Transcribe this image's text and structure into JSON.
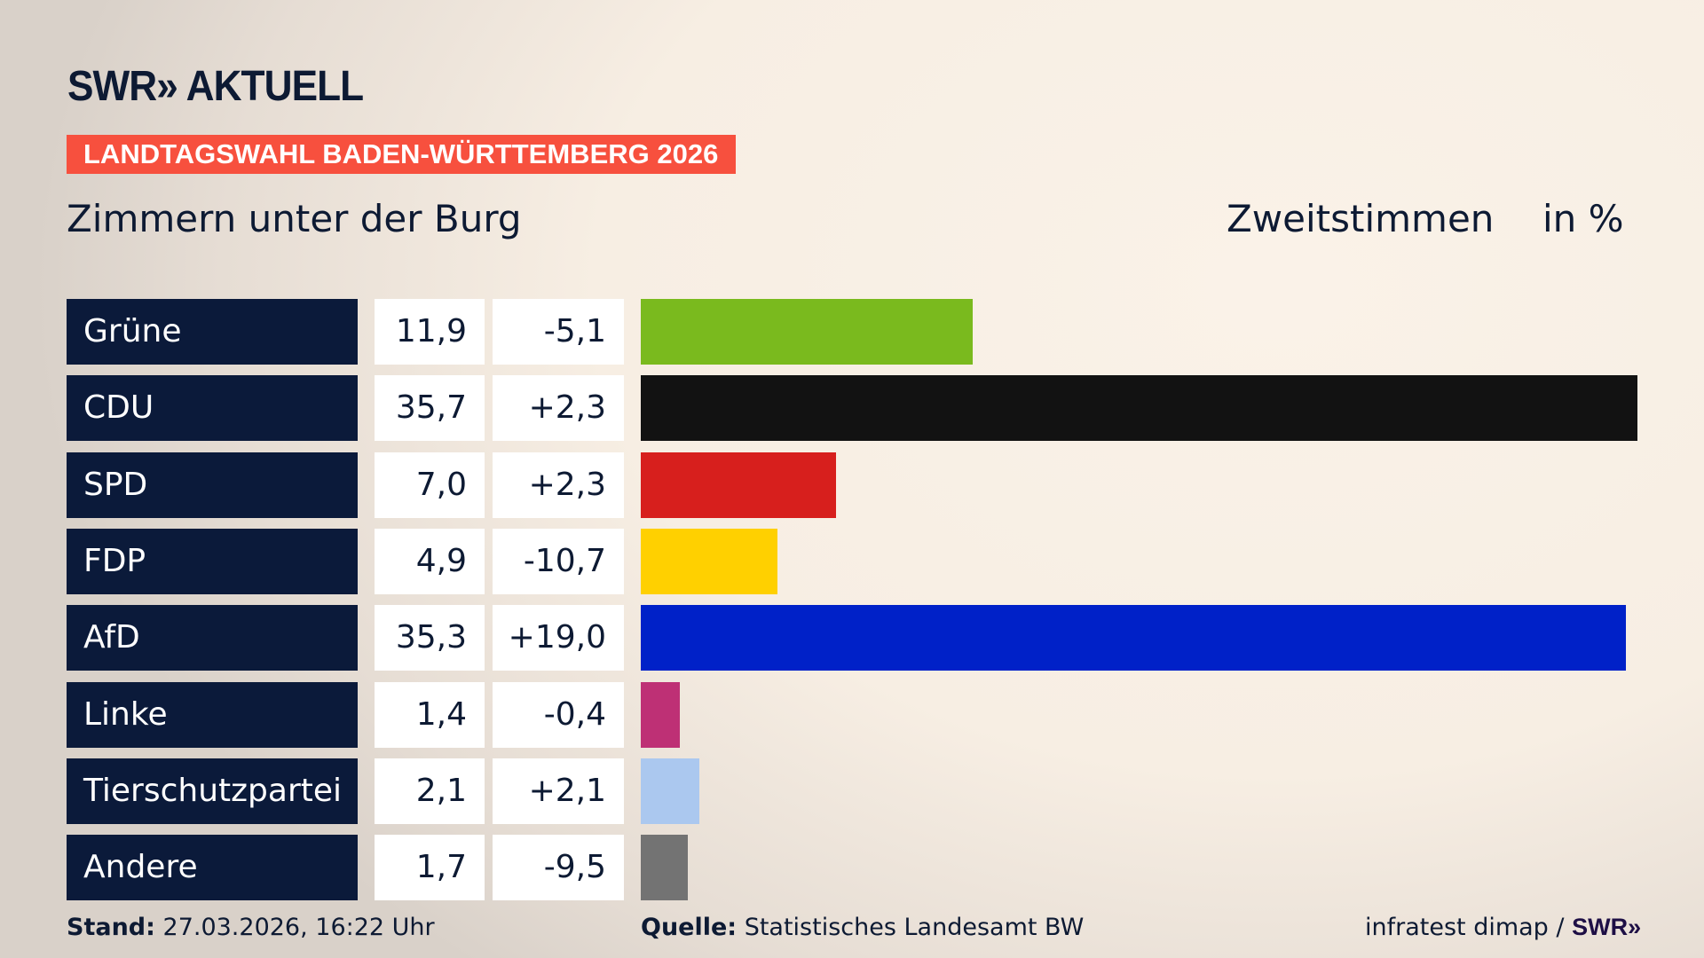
{
  "brand": {
    "logo": "SWR» AKTUELL"
  },
  "banner": "LANDTAGSWAHL BADEN-WÜRTTEMBERG 2026",
  "subtitle": "Zimmern unter der Burg",
  "measure": "Zweitstimmen",
  "unit": "in %",
  "chart_data": {
    "type": "bar",
    "orientation": "horizontal",
    "categories": [
      "Grüne",
      "CDU",
      "SPD",
      "FDP",
      "AfD",
      "Linke",
      "Tierschutzpartei",
      "Andere"
    ],
    "values": [
      11.9,
      35.7,
      7.0,
      4.9,
      35.3,
      1.4,
      2.1,
      1.7
    ],
    "value_labels": [
      "11,9",
      "35,7",
      "7,0",
      "4,9",
      "35,3",
      "1,4",
      "2,1",
      "1,7"
    ],
    "diff_labels": [
      "-5,1",
      "+2,3",
      "+2,3",
      "-10,7",
      "+19,0",
      "-0,4",
      "+2,1",
      "-9,5"
    ],
    "colors": [
      "#7aba1e",
      "#121212",
      "#d71f1d",
      "#ffd000",
      "#0021c8",
      "#be3075",
      "#abc8ef",
      "#737373"
    ],
    "xlim": [
      0,
      35.7
    ],
    "grid": false
  },
  "footer": {
    "stand_label": "Stand:",
    "stand_value": "27.03.2026, 16:22 Uhr",
    "source_label": "Quelle:",
    "source_value": "Statistisches Landesamt BW",
    "credit": "infratest dimap /",
    "credit_logo": "SWR»"
  }
}
